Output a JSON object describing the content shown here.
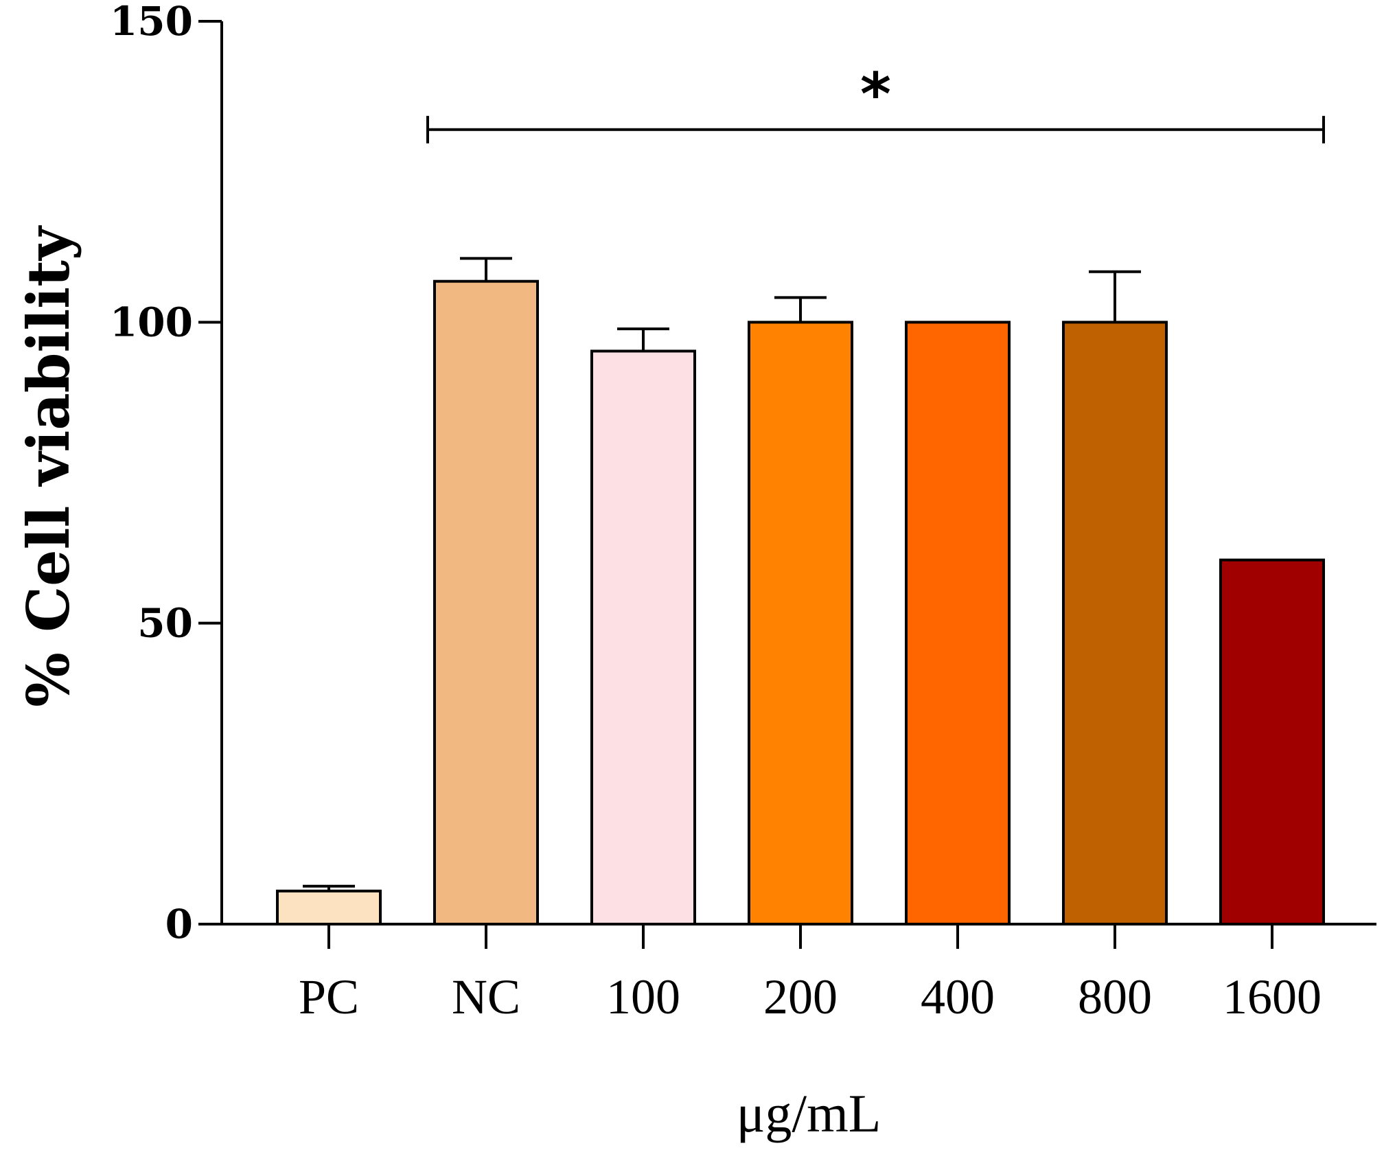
{
  "chart_data": {
    "type": "bar",
    "title": "",
    "xlabel": "μg/mL",
    "ylabel": "% Cell viability",
    "ylim": [
      0,
      150
    ],
    "yticks": [
      0,
      50,
      100,
      150
    ],
    "grid": false,
    "categories": [
      "PC",
      "NC",
      "100",
      "200",
      "400",
      "800",
      "1600"
    ],
    "values": [
      5.5,
      106.8,
      95.2,
      100,
      100,
      100,
      60.5
    ],
    "errors": [
      0.8,
      3.8,
      3.7,
      4.1,
      0,
      8.4,
      0
    ],
    "colors": [
      "#FDE2C2",
      "#F1B981",
      "#FCE0E4",
      "#FF8200",
      "#FF6600",
      "#BF6100",
      "#A00000"
    ],
    "annotations": [
      {
        "text": "*",
        "from_category": "NC",
        "to_category": "1600",
        "y": 132
      }
    ]
  }
}
